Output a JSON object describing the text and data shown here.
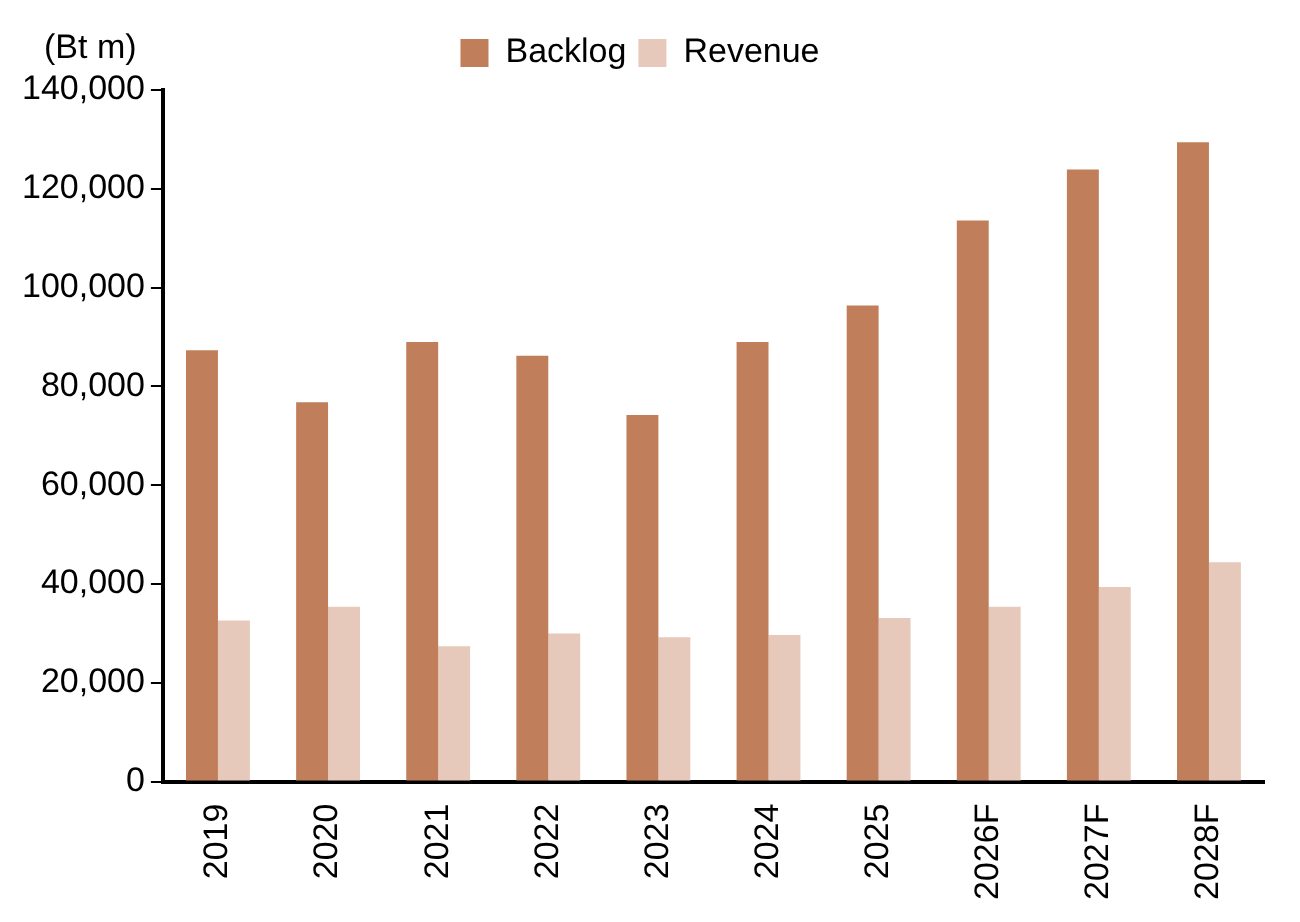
{
  "chart_data": {
    "type": "bar",
    "ylabel": "(Bt m)",
    "categories": [
      "2019",
      "2020",
      "2021",
      "2022",
      "2023",
      "2024",
      "2025",
      "2026F",
      "2027F",
      "2028F"
    ],
    "series": [
      {
        "name": "Backlog",
        "color": "#c07e5a",
        "values": [
          87300,
          76800,
          89000,
          86200,
          74200,
          89000,
          96400,
          113600,
          123900,
          129400
        ]
      },
      {
        "name": "Revenue",
        "color": "#e6c9bb",
        "values": [
          32600,
          35400,
          27400,
          30000,
          29200,
          29700,
          33100,
          35400,
          39400,
          44400
        ]
      }
    ],
    "ylim": [
      0,
      140000
    ],
    "yticks": [
      0,
      {
        "value": 20000,
        "label": "20,000"
      },
      {
        "value": 40000,
        "label": "40,000"
      },
      {
        "value": 60000,
        "label": "60,000"
      },
      {
        "value": 80000,
        "label": "80,000"
      },
      {
        "value": 100000,
        "label": "100,000"
      },
      {
        "value": 120000,
        "label": "120,000"
      },
      {
        "value": 140000,
        "label": "140,000"
      }
    ],
    "grid": false,
    "legend": "top"
  }
}
